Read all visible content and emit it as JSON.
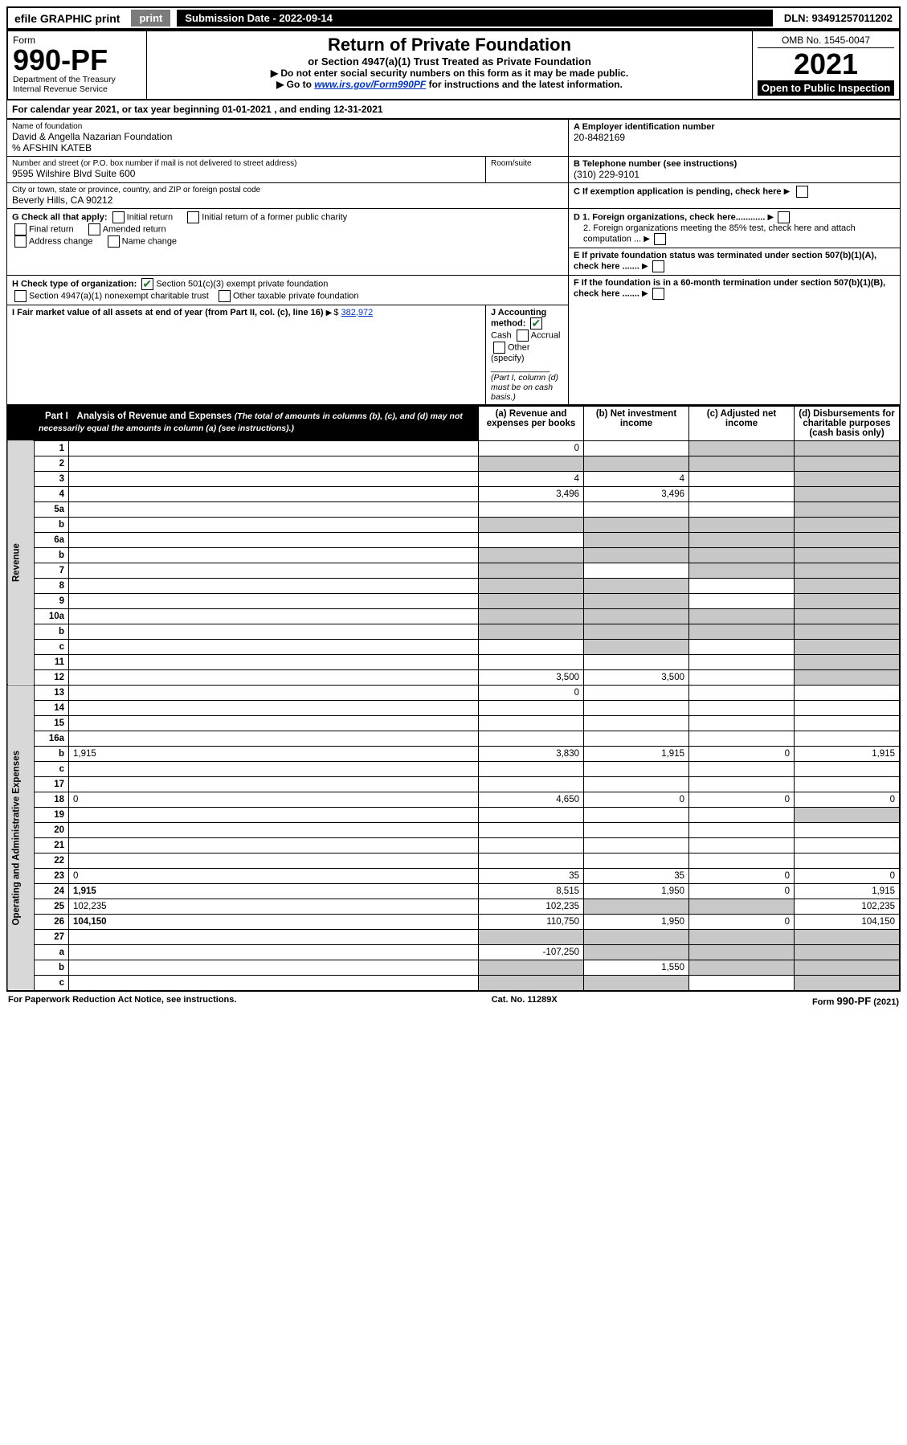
{
  "topbar": {
    "efile": "efile GRAPHIC print",
    "submission": "Submission Date - 2022-09-14",
    "dln": "DLN: 93491257011202"
  },
  "header": {
    "form_label": "Form",
    "form_no": "990-PF",
    "dept": "Department of the Treasury",
    "irs": "Internal Revenue Service",
    "title": "Return of Private Foundation",
    "subtitle": "or Section 4947(a)(1) Trust Treated as Private Foundation",
    "instr1": "▶ Do not enter social security numbers on this form as it may be made public.",
    "instr2_pre": "▶ Go to ",
    "instr2_link": "www.irs.gov/Form990PF",
    "instr2_post": " for instructions and the latest information.",
    "omb": "OMB No. 1545-0047",
    "year": "2021",
    "open": "Open to Public Inspection"
  },
  "calendar": {
    "text_pre": "For calendar year 2021, or tax year beginning ",
    "begin": "01-01-2021",
    "text_mid": " , and ending ",
    "end": "12-31-2021"
  },
  "meta": {
    "name_lbl": "Name of foundation",
    "name": "David & Angella Nazarian Foundation",
    "care_of": "% AFSHIN KATEB",
    "addr_lbl": "Number and street (or P.O. box number if mail is not delivered to street address)",
    "addr": "9595 Wilshire Blvd Suite 600",
    "room_lbl": "Room/suite",
    "city_lbl": "City or town, state or province, country, and ZIP or foreign postal code",
    "city": "Beverly Hills, CA  90212",
    "A_lbl": "A Employer identification number",
    "A_val": "20-8482169",
    "B_lbl": "B Telephone number (see instructions)",
    "B_val": "(310) 229-9101",
    "C_lbl": "C If exemption application is pending, check here",
    "D1_lbl": "D 1. Foreign organizations, check here............",
    "D2_lbl": "2. Foreign organizations meeting the 85% test, check here and attach computation ...",
    "E_lbl": "E If private foundation status was terminated under section 507(b)(1)(A), check here .......",
    "F_lbl": "F If the foundation is in a 60-month termination under section 507(b)(1)(B), check here .......",
    "G_lbl": "G Check all that apply:",
    "G_opts": [
      "Initial return",
      "Initial return of a former public charity",
      "Final return",
      "Amended return",
      "Address change",
      "Name change"
    ],
    "H_lbl": "H Check type of organization:",
    "H_opt1": "Section 501(c)(3) exempt private foundation",
    "H_opt2": "Section 4947(a)(1) nonexempt charitable trust",
    "H_opt3": "Other taxable private foundation",
    "I_lbl": "I Fair market value of all assets at end of year (from Part II, col. (c), line 16)",
    "I_val": "382,972",
    "J_lbl": "J Accounting method:",
    "J_cash": "Cash",
    "J_accrual": "Accrual",
    "J_other": "Other (specify)",
    "J_note": "(Part I, column (d) must be on cash basis.)"
  },
  "part1": {
    "label": "Part I",
    "title": "Analysis of Revenue and Expenses",
    "title_note": "(The total of amounts in columns (b), (c), and (d) may not necessarily equal the amounts in column (a) (see instructions).)",
    "col_a": "(a) Revenue and expenses per books",
    "col_b": "(b) Net investment income",
    "col_c": "(c) Adjusted net income",
    "col_d": "(d) Disbursements for charitable purposes (cash basis only)",
    "side_rev": "Revenue",
    "side_exp": "Operating and Administrative Expenses",
    "rows": [
      {
        "n": "1",
        "d": "",
        "a": "0",
        "b": "",
        "c": "",
        "gb": false,
        "gc": true,
        "gd": true
      },
      {
        "n": "2",
        "d": "",
        "a": "",
        "b": "",
        "c": "",
        "ga": true,
        "gb": true,
        "gc": true,
        "gd": true
      },
      {
        "n": "3",
        "d": "",
        "a": "4",
        "b": "4",
        "c": "",
        "gd": true
      },
      {
        "n": "4",
        "d": "",
        "a": "3,496",
        "b": "3,496",
        "c": "",
        "gd": true
      },
      {
        "n": "5a",
        "d": "",
        "a": "",
        "b": "",
        "c": "",
        "gd": true
      },
      {
        "n": "b",
        "d": "",
        "a": "",
        "b": "",
        "c": "",
        "ga": true,
        "gb": true,
        "gc": true,
        "gd": true
      },
      {
        "n": "6a",
        "d": "",
        "a": "",
        "b": "",
        "c": "",
        "gb": true,
        "gc": true,
        "gd": true
      },
      {
        "n": "b",
        "d": "",
        "a": "",
        "b": "",
        "c": "",
        "ga": true,
        "gb": true,
        "gc": true,
        "gd": true
      },
      {
        "n": "7",
        "d": "",
        "a": "",
        "b": "",
        "c": "",
        "ga": true,
        "gc": true,
        "gd": true
      },
      {
        "n": "8",
        "d": "",
        "a": "",
        "b": "",
        "c": "",
        "ga": true,
        "gb": true,
        "gd": true
      },
      {
        "n": "9",
        "d": "",
        "a": "",
        "b": "",
        "c": "",
        "ga": true,
        "gb": true,
        "gd": true
      },
      {
        "n": "10a",
        "d": "",
        "a": "",
        "b": "",
        "c": "",
        "ga": true,
        "gb": true,
        "gc": true,
        "gd": true
      },
      {
        "n": "b",
        "d": "",
        "a": "",
        "b": "",
        "c": "",
        "ga": true,
        "gb": true,
        "gc": true,
        "gd": true
      },
      {
        "n": "c",
        "d": "",
        "a": "",
        "b": "",
        "c": "",
        "gb": true,
        "gd": true
      },
      {
        "n": "11",
        "d": "",
        "a": "",
        "b": "",
        "c": "",
        "gd": true
      },
      {
        "n": "12",
        "d": "",
        "a": "3,500",
        "b": "3,500",
        "c": "",
        "gd": true,
        "bold": true
      },
      {
        "n": "13",
        "d": "",
        "a": "0",
        "b": "",
        "c": ""
      },
      {
        "n": "14",
        "d": "",
        "a": "",
        "b": "",
        "c": ""
      },
      {
        "n": "15",
        "d": "",
        "a": "",
        "b": "",
        "c": ""
      },
      {
        "n": "16a",
        "d": "",
        "a": "",
        "b": "",
        "c": ""
      },
      {
        "n": "b",
        "d": "1,915",
        "a": "3,830",
        "b": "1,915",
        "c": "0"
      },
      {
        "n": "c",
        "d": "",
        "a": "",
        "b": "",
        "c": ""
      },
      {
        "n": "17",
        "d": "",
        "a": "",
        "b": "",
        "c": ""
      },
      {
        "n": "18",
        "d": "0",
        "a": "4,650",
        "b": "0",
        "c": "0"
      },
      {
        "n": "19",
        "d": "",
        "a": "",
        "b": "",
        "c": "",
        "gd": true
      },
      {
        "n": "20",
        "d": "",
        "a": "",
        "b": "",
        "c": ""
      },
      {
        "n": "21",
        "d": "",
        "a": "",
        "b": "",
        "c": ""
      },
      {
        "n": "22",
        "d": "",
        "a": "",
        "b": "",
        "c": ""
      },
      {
        "n": "23",
        "d": "0",
        "a": "35",
        "b": "35",
        "c": "0"
      },
      {
        "n": "24",
        "d": "1,915",
        "a": "8,515",
        "b": "1,950",
        "c": "0",
        "bold": true
      },
      {
        "n": "25",
        "d": "102,235",
        "a": "102,235",
        "b": "",
        "c": "",
        "gb": true,
        "gc": true
      },
      {
        "n": "26",
        "d": "104,150",
        "a": "110,750",
        "b": "1,950",
        "c": "0",
        "bold": true
      },
      {
        "n": "27",
        "d": "",
        "a": "",
        "b": "",
        "c": "",
        "ga": true,
        "gb": true,
        "gc": true,
        "gd": true
      },
      {
        "n": "a",
        "d": "",
        "a": "-107,250",
        "b": "",
        "c": "",
        "gb": true,
        "gc": true,
        "gd": true,
        "bold": true
      },
      {
        "n": "b",
        "d": "",
        "a": "",
        "b": "1,550",
        "c": "",
        "ga": true,
        "gc": true,
        "gd": true,
        "bold": true
      },
      {
        "n": "c",
        "d": "",
        "a": "",
        "b": "",
        "c": "",
        "ga": true,
        "gb": true,
        "gd": true,
        "bold": true
      }
    ]
  },
  "footer": {
    "left": "For Paperwork Reduction Act Notice, see instructions.",
    "mid": "Cat. No. 11289X",
    "right": "Form 990-PF (2021)"
  }
}
